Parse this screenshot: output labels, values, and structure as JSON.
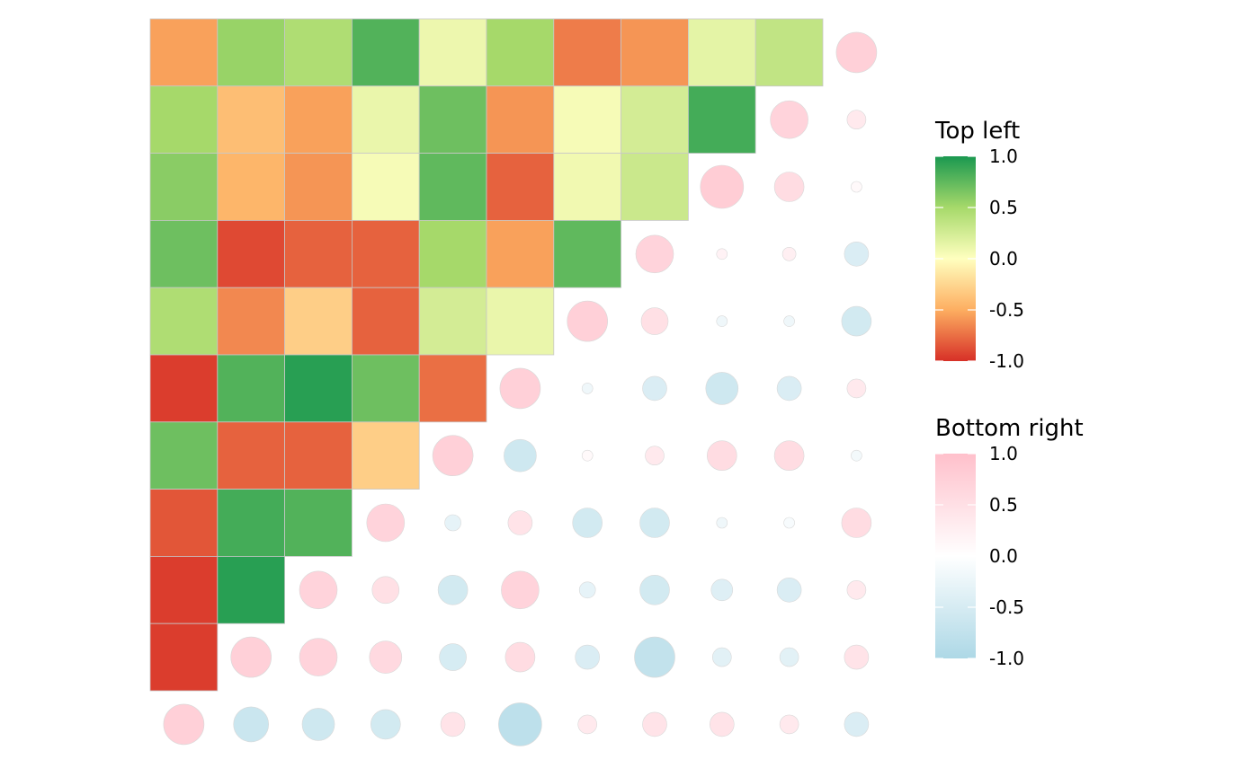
{
  "chart_data": {
    "type": "heatmap",
    "layout": "mixed correlation matrix (squares on upper-left triangle, circles on lower-right triangle)",
    "rows": 11,
    "cols": 11,
    "values": [
      [
        -0.55,
        0.55,
        0.45,
        0.8,
        0.1,
        0.5,
        -0.7,
        -0.6,
        0.15,
        0.35,
        0.75
      ],
      [
        0.5,
        -0.4,
        -0.55,
        0.12,
        0.7,
        -0.6,
        0.05,
        0.25,
        0.85,
        0.7,
        0.35
      ],
      [
        0.6,
        -0.45,
        -0.6,
        0.05,
        0.75,
        -0.8,
        0.08,
        0.3,
        0.8,
        0.55,
        0.1
      ],
      [
        0.7,
        -0.9,
        -0.8,
        -0.8,
        0.5,
        -0.55,
        0.75,
        0.7,
        0.2,
        0.25,
        -0.45
      ],
      [
        0.45,
        -0.65,
        -0.3,
        -0.8,
        0.25,
        0.12,
        0.75,
        0.5,
        -0.2,
        -0.2,
        -0.55
      ],
      [
        -0.95,
        0.8,
        0.95,
        0.7,
        -0.75,
        0.75,
        -0.2,
        -0.45,
        -0.6,
        -0.45,
        0.35
      ],
      [
        0.7,
        -0.8,
        -0.8,
        -0.3,
        0.75,
        -0.6,
        0.1,
        0.35,
        0.55,
        0.55,
        -0.15
      ],
      [
        -0.85,
        0.85,
        0.8,
        0.7,
        -0.3,
        0.45,
        -0.55,
        -0.55,
        -0.2,
        -0.1,
        0.55
      ],
      [
        -0.95,
        0.95,
        0.7,
        0.5,
        -0.55,
        0.7,
        -0.3,
        -0.55,
        -0.4,
        -0.45,
        0.35
      ],
      [
        -0.95,
        0.75,
        0.7,
        0.6,
        -0.5,
        0.55,
        -0.45,
        -0.75,
        -0.35,
        -0.35,
        0.45
      ],
      [
        0.75,
        -0.65,
        -0.6,
        -0.55,
        0.45,
        -0.8,
        0.35,
        0.45,
        0.45,
        0.35,
        -0.45
      ]
    ],
    "legends": [
      {
        "title": "Top left",
        "ticks": [
          "1.0",
          "0.5",
          "0.0",
          "-0.5",
          "-1.0"
        ],
        "range": [
          -1,
          1
        ],
        "colors": [
          "#d73027",
          "#fdae61",
          "#ffffbf",
          "#a6d96a",
          "#1a9850"
        ]
      },
      {
        "title": "Bottom right",
        "ticks": [
          "1.0",
          "0.5",
          "0.0",
          "-0.5",
          "-1.0"
        ],
        "range": [
          -1,
          1
        ],
        "colors": [
          "#add8e6",
          "#ffffff",
          "#ffc0cb"
        ]
      }
    ]
  }
}
